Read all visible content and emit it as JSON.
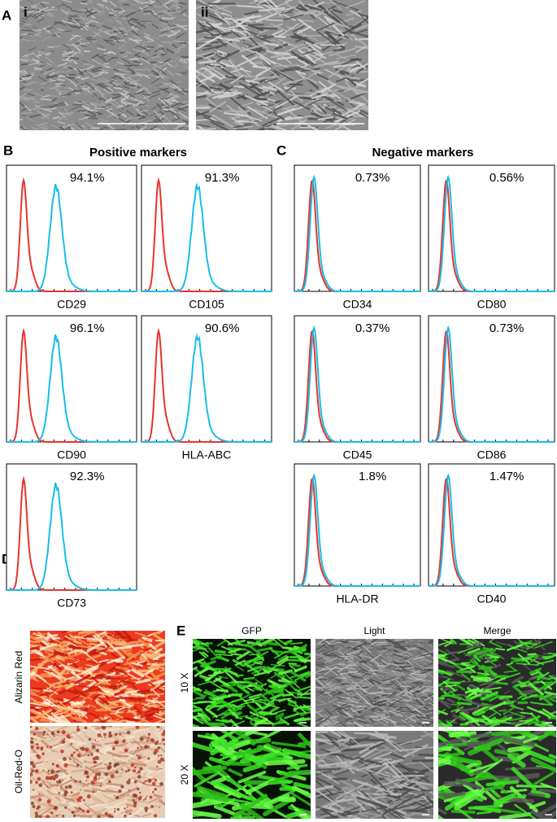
{
  "panel_labels": [
    "A",
    "B",
    "C",
    "D",
    "E"
  ],
  "panel_a": {
    "subpanels": [
      "i",
      "ii"
    ]
  },
  "positive_markers": {
    "title": "Positive markers",
    "plots": [
      {
        "marker": "CD29",
        "percent": "94.1%"
      },
      {
        "marker": "CD105",
        "percent": "91.3%"
      },
      {
        "marker": "CD90",
        "percent": "96.1%"
      },
      {
        "marker": "HLA-ABC",
        "percent": "90.6%"
      },
      {
        "marker": "CD73",
        "percent": "92.3%"
      }
    ]
  },
  "negative_markers": {
    "title": "Negative markers",
    "plots": [
      {
        "marker": "CD34",
        "percent": "0.73%"
      },
      {
        "marker": "CD80",
        "percent": "0.56%"
      },
      {
        "marker": "CD45",
        "percent": "0.37%"
      },
      {
        "marker": "CD86",
        "percent": "0.73%"
      },
      {
        "marker": "HLA-DR",
        "percent": "1.8%"
      },
      {
        "marker": "CD40",
        "percent": "1.47%"
      }
    ]
  },
  "panel_d": {
    "stains": [
      "Alizarin Red",
      "Oil-Red-O"
    ]
  },
  "panel_e": {
    "columns": [
      "GFP",
      "Light",
      "Merge"
    ],
    "rows": [
      "10 X",
      "20 X"
    ]
  }
}
